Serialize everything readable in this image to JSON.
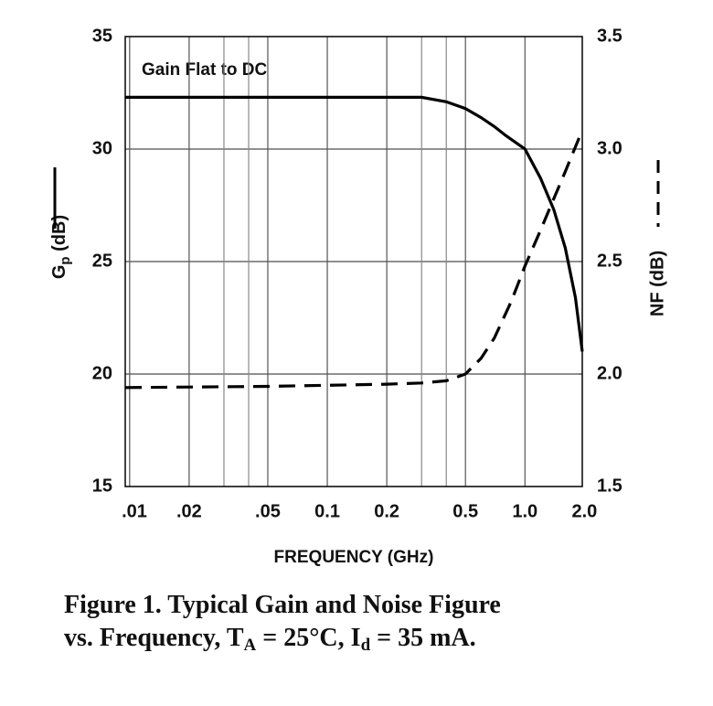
{
  "chart_data": {
    "type": "line",
    "annotation": "Gain Flat to DC",
    "xlabel": "FREQUENCY (GHz)",
    "ylabel": [
      "G",
      "p",
      " (dB)"
    ],
    "y2label": "NF (dB)",
    "caption": [
      [
        "Figure 1.  Typical Gain and Noise Figure"
      ],
      [
        "vs. Frequency, T",
        "A",
        " = 25°C, I",
        "d",
        " = 35 mA."
      ]
    ],
    "xscale": "log",
    "xlim": [
      0.0095,
      1.95
    ],
    "xticks": [
      {
        "value": 0.01,
        "label": ".01"
      },
      {
        "value": 0.02,
        "label": ".02"
      },
      {
        "value": 0.05,
        "label": ".05"
      },
      0.1,
      0.2,
      0.5,
      {
        "value": 1.0,
        "label": "1.0"
      },
      {
        "value": 2.0,
        "label": "2.0"
      }
    ],
    "xminor": [
      0.03,
      0.04,
      0.3,
      0.4
    ],
    "ylim": [
      15,
      35
    ],
    "yticks": [
      15,
      20,
      25,
      30,
      35
    ],
    "y2lim": [
      1.5,
      3.5
    ],
    "y2ticks": [
      1.5,
      {
        "value": 2.0,
        "label": "2.0"
      },
      2.5,
      {
        "value": 3.0,
        "label": "3.0"
      },
      3.5
    ],
    "grid": true,
    "series": [
      {
        "color": "#000000",
        "dash": false,
        "x": [
          0.0095,
          0.05,
          0.2,
          0.3,
          0.4,
          0.5,
          0.6,
          0.7,
          0.8,
          1.0,
          1.2,
          1.4,
          1.6,
          1.8,
          1.95
        ],
        "values": [
          32.3,
          32.3,
          32.3,
          32.3,
          32.1,
          31.8,
          31.4,
          31.0,
          30.6,
          30.0,
          28.7,
          27.3,
          25.6,
          23.4,
          21.0
        ]
      },
      {
        "color": "#000000",
        "dash": true,
        "axis": "y2",
        "x": [
          0.0095,
          0.05,
          0.1,
          0.2,
          0.3,
          0.4,
          0.5,
          0.6,
          0.7,
          0.85,
          1.0,
          1.2,
          1.4,
          1.6,
          1.9
        ],
        "values": [
          1.94,
          1.945,
          1.95,
          1.955,
          1.96,
          1.97,
          2.0,
          2.07,
          2.16,
          2.32,
          2.48,
          2.64,
          2.78,
          2.9,
          3.06
        ]
      }
    ]
  }
}
